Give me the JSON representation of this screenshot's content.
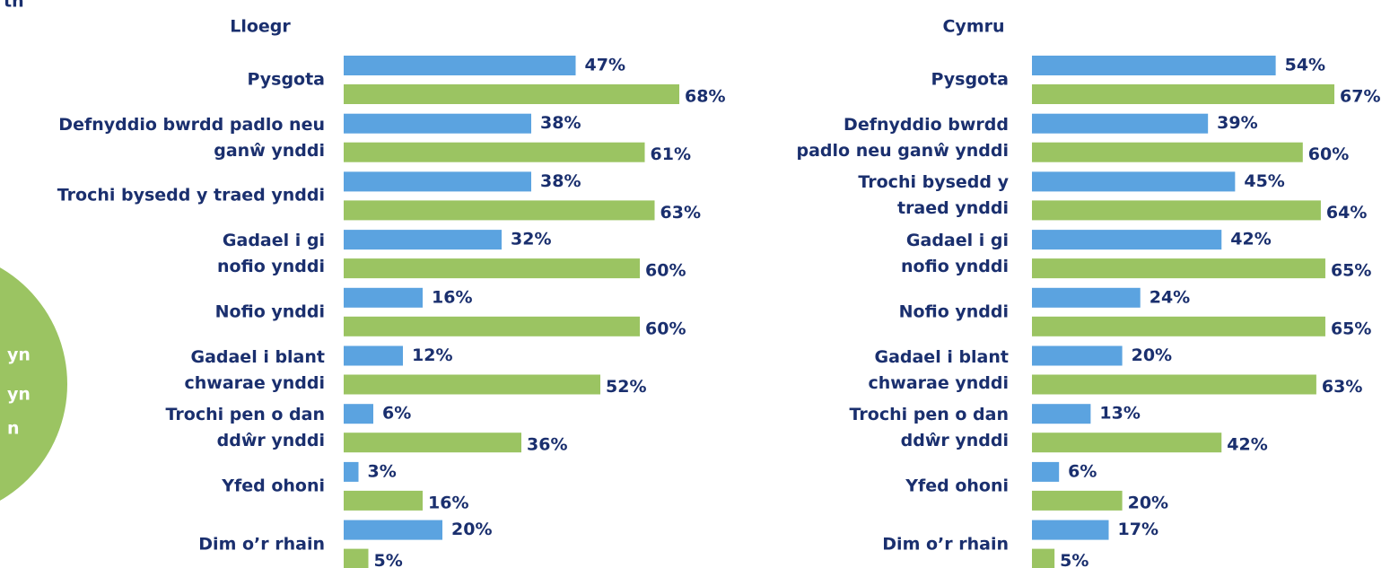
{
  "heading_fragment": "th",
  "side_note": {
    "lines": [
      "yn",
      "yn",
      "n"
    ]
  },
  "chart_data": [
    {
      "type": "barh",
      "title": "Lloegr",
      "categories": [
        "Pysgota",
        "Defnyddio bwrdd padlo neu\nganŵ ynddi",
        "Trochi bysedd y traed ynddi",
        "Gadael i gi\nnofio ynddi",
        "Nofio ynddi",
        "Gadael i blant\nchwarae ynddi",
        "Trochi pen o dan\nddŵr ynddi",
        "Yfed ohoni",
        "Dim o’r rhain"
      ],
      "series": [
        {
          "color": "#5ba3e0",
          "values": [
            47,
            38,
            38,
            32,
            16,
            12,
            6,
            3,
            20
          ],
          "value_labels": [
            "47%",
            "38%",
            "38%",
            "32%",
            "16%",
            "12%",
            "6%",
            "3%",
            "20%"
          ]
        },
        {
          "color": "#9bc462",
          "values": [
            68,
            61,
            63,
            60,
            60,
            52,
            36,
            16,
            5
          ],
          "value_labels": [
            "68%",
            "61%",
            "63%",
            "60%",
            "60%",
            "52%",
            "36%",
            "16%",
            "5%"
          ]
        }
      ]
    },
    {
      "type": "barh",
      "title": "Cymru",
      "categories": [
        "Pysgota",
        "Defnyddio bwrdd\npadlo neu ganŵ ynddi",
        "Trochi bysedd y\ntraed ynddi",
        "Gadael i gi\nnofio ynddi",
        "Nofio ynddi",
        "Gadael i blant\nchwarae ynddi",
        "Trochi pen o dan\nddŵr ynddi",
        "Yfed ohoni",
        "Dim o’r rhain"
      ],
      "series": [
        {
          "color": "#5ba3e0",
          "values": [
            54,
            39,
            45,
            42,
            24,
            20,
            13,
            6,
            17
          ],
          "value_labels": [
            "54%",
            "39%",
            "45%",
            "42%",
            "24%",
            "20%",
            "13%",
            "6%",
            "17%"
          ]
        },
        {
          "color": "#9bc462",
          "values": [
            67,
            60,
            64,
            65,
            65,
            63,
            42,
            20,
            5
          ],
          "value_labels": [
            "67%",
            "60%",
            "64%",
            "65%",
            "65%",
            "63%",
            "42%",
            "20%",
            "5%"
          ]
        }
      ]
    }
  ]
}
